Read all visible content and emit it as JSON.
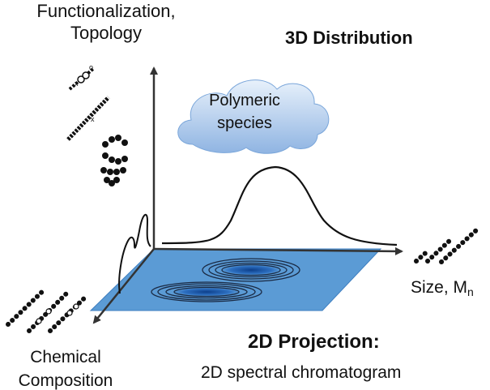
{
  "labels": {
    "y_axis": "Functionalization,\nTopology",
    "title_3d": "3D Distribution",
    "cloud": "Polymeric\nspecies",
    "x_axis_main": "Size, M",
    "x_axis_sub": "n",
    "z_axis": "Chemical\nComposition",
    "projection_title": "2D Projection:",
    "projection_subtitle": "2D spectral chromatogram"
  },
  "colors": {
    "axis": "#333333",
    "plane": "#5b9bd5",
    "contour_core": "#1f5aa6",
    "cloud_light": "#dce9f7",
    "cloud_dark": "#8fb7e6",
    "molecule": "#111111"
  },
  "icons": [
    "polymer-chain-icon",
    "cloud-shape",
    "gaussian-curve",
    "contour-peaks"
  ]
}
